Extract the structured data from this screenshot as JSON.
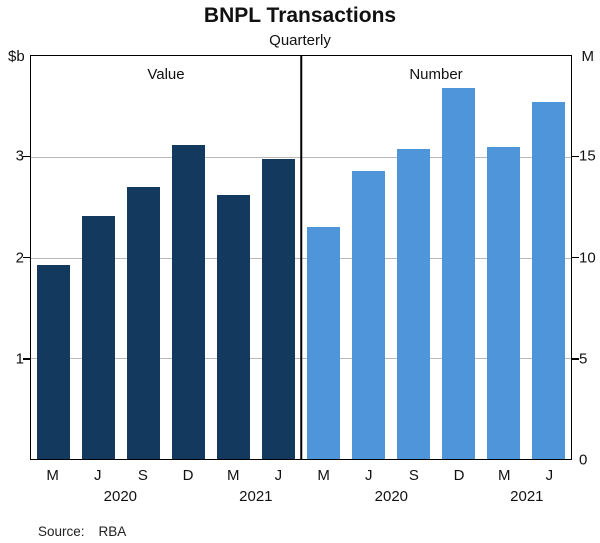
{
  "title": "BNPL Transactions",
  "subtitle": "Quarterly",
  "left_axis_unit": "$b",
  "right_axis_unit": "M",
  "source_label": "Source:",
  "source_value": "RBA",
  "chart_data": {
    "type": "bar",
    "categories": [
      "M",
      "J",
      "S",
      "D",
      "M",
      "J"
    ],
    "year_groups": [
      {
        "label": "2020",
        "span": [
          0,
          3
        ]
      },
      {
        "label": "2021",
        "span": [
          4,
          5
        ]
      }
    ],
    "grid": true,
    "panels": [
      {
        "name": "Value",
        "axis_side": "left",
        "unit": "$b",
        "ylim": [
          0,
          4
        ],
        "ticks": [
          1,
          2,
          3
        ],
        "color": "#14395e",
        "values": [
          1.93,
          2.41,
          2.7,
          3.12,
          2.62,
          2.98
        ]
      },
      {
        "name": "Number",
        "axis_side": "right",
        "unit": "M",
        "ylim": [
          0,
          20
        ],
        "ticks": [
          0,
          5,
          10,
          15
        ],
        "color": "#4f95d9",
        "values": [
          11.5,
          14.3,
          15.4,
          18.4,
          15.5,
          17.7
        ]
      }
    ]
  }
}
